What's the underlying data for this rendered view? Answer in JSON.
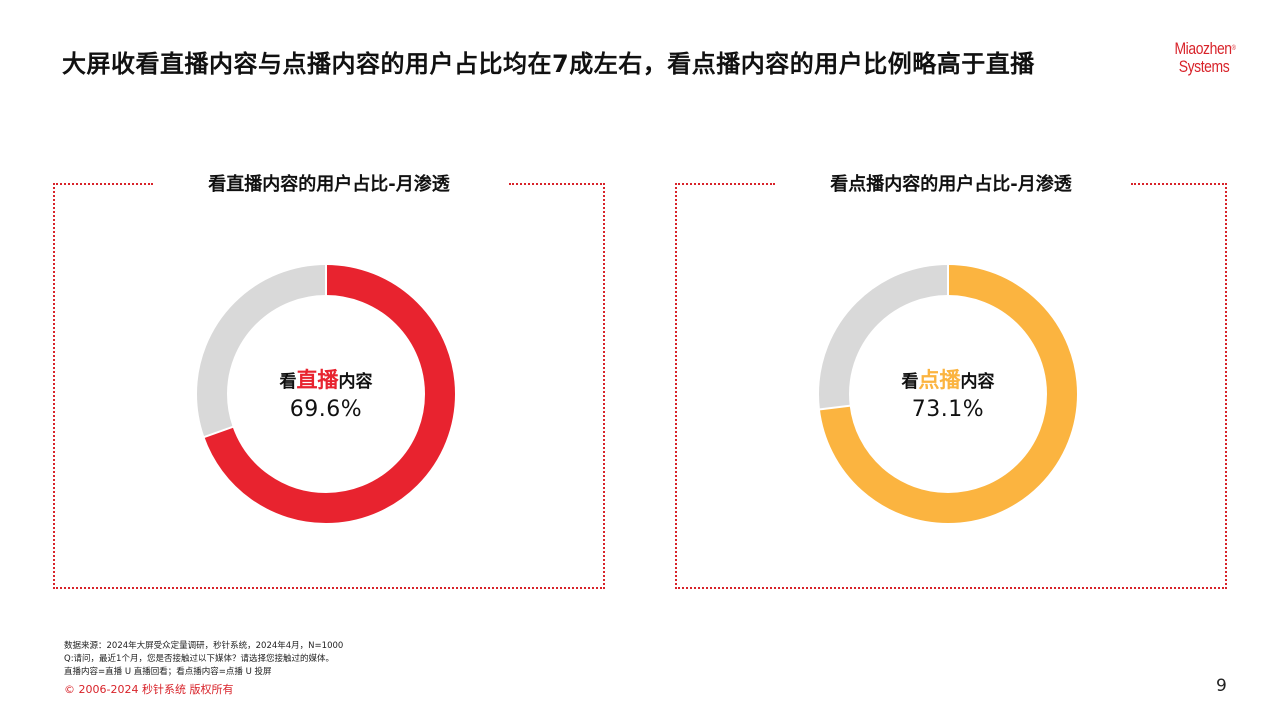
{
  "header": {
    "title": "大屏收看直播内容与点播内容的用户占比均在7成左右，看点播内容的用户比例略高于直播"
  },
  "logo": {
    "line1": "Miaozhen",
    "line2": "Systems",
    "reg": "®"
  },
  "colors": {
    "accent_red": "#E8232F",
    "accent_orange": "#FBB440",
    "remainder_gray": "#D9D9D9",
    "frame_red": "#D8232A"
  },
  "chart_data": [
    {
      "type": "pie",
      "title": "看直播内容的用户占比-月渗透",
      "center_label": {
        "prefix": "看",
        "highlight": "直播",
        "suffix": "内容"
      },
      "center_value": "69.6%",
      "slices": [
        {
          "label": "看直播内容",
          "value": 69.6,
          "color": "#E8232F"
        },
        {
          "label": "",
          "value": 30.4,
          "color": "#D9D9D9"
        }
      ]
    },
    {
      "type": "pie",
      "title": "看点播内容的用户占比-月渗透",
      "center_label": {
        "prefix": "看",
        "highlight": "点播",
        "suffix": "内容"
      },
      "center_value": "73.1%",
      "slices": [
        {
          "label": "看点播内容",
          "value": 73.1,
          "color": "#FBB440"
        },
        {
          "label": "",
          "value": 26.9,
          "color": "#D9D9D9"
        }
      ]
    }
  ],
  "footer": {
    "notes": [
      "数据来源：2024年大屏受众定量调研，秒针系统，2024年4月，N=1000",
      "Q:请问，最近1个月，您是否接触过以下媒体？请选择您接触过的媒体。",
      "直播内容=直播 U 直播回看；看点播内容=点播 U 投屏"
    ],
    "copyright": "© 2006-2024 秒针系统 版权所有",
    "page_number": "9"
  }
}
